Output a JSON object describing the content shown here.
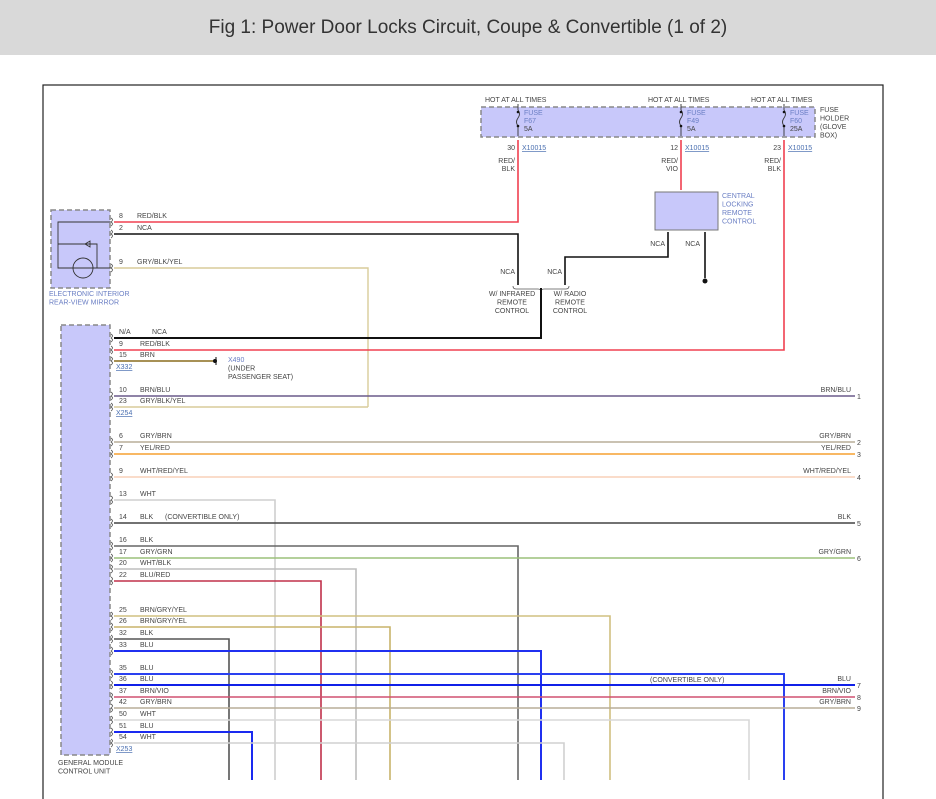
{
  "title": "Fig 1: Power Door Locks Circuit, Coupe & Convertible (1 of 2)",
  "fuse_holder": {
    "label": [
      "FUSE",
      "HOLDER",
      "(GLOVE",
      "BOX)"
    ],
    "hot_label": "HOT AT ALL TIMES",
    "connector": "X10015",
    "fuses": [
      {
        "name": "FUSE",
        "id": "F67",
        "rating": "5A",
        "pin": "30",
        "wire": [
          "RED/",
          "BLK"
        ]
      },
      {
        "name": "FUSE",
        "id": "F49",
        "rating": "5A",
        "pin": "12",
        "wire": [
          "RED/",
          "VIO"
        ]
      },
      {
        "name": "FUSE",
        "id": "F60",
        "rating": "25A",
        "pin": "23",
        "wire": [
          "RED/",
          "BLK"
        ]
      }
    ]
  },
  "central_locking": {
    "label": [
      "CENTRAL",
      "LOCKING",
      "REMOTE",
      "CONTROL"
    ],
    "pins": [
      "NCA",
      "NCA"
    ]
  },
  "options": {
    "infrared": [
      "W/ INFRARED",
      "REMOTE",
      "CONTROL"
    ],
    "radio": [
      "W/ RADIO",
      "REMOTE",
      "CONTROL"
    ],
    "nca_left": "NCA",
    "nca_right": "NCA"
  },
  "mirror": {
    "label": [
      "ELECTRONIC INTERIOR",
      "REAR-VIEW MIRROR"
    ],
    "pins": [
      {
        "pin": "8",
        "color": "RED/BLK"
      },
      {
        "pin": "2",
        "color": "NCA"
      },
      {
        "pin": "9",
        "color": "GRY/BLK/YEL"
      }
    ]
  },
  "ground": {
    "label": [
      "X490",
      "(UNDER",
      "PASSENGER SEAT)"
    ]
  },
  "gmcu": {
    "label": [
      "GENERAL MODULE",
      "CONTROL UNIT"
    ],
    "connectors": [
      "X332",
      "X254",
      "X253"
    ],
    "convertible_note": "(CONVERTIBLE ONLY)",
    "wires": [
      {
        "pin": "N/A",
        "color": "NCA",
        "hex": "#111111"
      },
      {
        "pin": "9",
        "color": "RED/BLK",
        "hex": "#f04050"
      },
      {
        "pin": "15",
        "color": "BRN",
        "hex": "#8a6d1e"
      },
      {
        "pin": "10",
        "color": "BRN/BLU",
        "hex": "#6a5a8a",
        "end_label": "BRN/BLU",
        "end_pin": "1"
      },
      {
        "pin": "23",
        "color": "GRY/BLK/YEL",
        "hex": "#d8cc9a"
      },
      {
        "pin": "6",
        "color": "GRY/BRN",
        "hex": "#b8ad98",
        "end_label": "GRY/BRN",
        "end_pin": "2"
      },
      {
        "pin": "7",
        "color": "YEL/RED",
        "hex": "#f5a030",
        "end_label": "YEL/RED",
        "end_pin": "3"
      },
      {
        "pin": "9",
        "color": "WHT/RED/YEL",
        "hex": "#f8d0b8",
        "end_label": "WHT/RED/YEL",
        "end_pin": "4"
      },
      {
        "pin": "13",
        "color": "WHT",
        "hex": "#cfcfcf"
      },
      {
        "pin": "14",
        "color": "BLK",
        "hex": "#444444",
        "end_label": "BLK",
        "end_pin": "5"
      },
      {
        "pin": "16",
        "color": "BLK",
        "hex": "#666666"
      },
      {
        "pin": "17",
        "color": "GRY/GRN",
        "hex": "#9cc07a",
        "end_label": "GRY/GRN",
        "end_pin": "6"
      },
      {
        "pin": "20",
        "color": "WHT/BLK",
        "hex": "#bdbdbd"
      },
      {
        "pin": "22",
        "color": "BLU/RED",
        "hex": "#c0304a"
      },
      {
        "pin": "25",
        "color": "BRN/GRY/YEL",
        "hex": "#d0c080"
      },
      {
        "pin": "26",
        "color": "BRN/GRY/YEL",
        "hex": "#c8b46a"
      },
      {
        "pin": "32",
        "color": "BLK",
        "hex": "#555555"
      },
      {
        "pin": "33",
        "color": "BLU",
        "hex": "#2030f0"
      },
      {
        "pin": "35",
        "color": "BLU",
        "hex": "#2a40f0"
      },
      {
        "pin": "36",
        "color": "BLU",
        "hex": "#1020e8",
        "end_label": "BLU",
        "end_pin": "7"
      },
      {
        "pin": "37",
        "color": "BRN/VIO",
        "hex": "#d05070",
        "end_label": "BRN/VIO",
        "end_pin": "8"
      },
      {
        "pin": "42",
        "color": "GRY/BRN",
        "hex": "#b8ad98",
        "end_label": "GRY/BRN",
        "end_pin": "9"
      },
      {
        "pin": "50",
        "color": "WHT",
        "hex": "#d8d8d8"
      },
      {
        "pin": "51",
        "color": "BLU",
        "hex": "#1a2af0"
      },
      {
        "pin": "54",
        "color": "WHT",
        "hex": "#d0d0d0"
      }
    ]
  },
  "colors": {
    "module_fill": "#c8c8fa",
    "module_border": "#888888",
    "red": "#f04050",
    "black": "#111111"
  }
}
